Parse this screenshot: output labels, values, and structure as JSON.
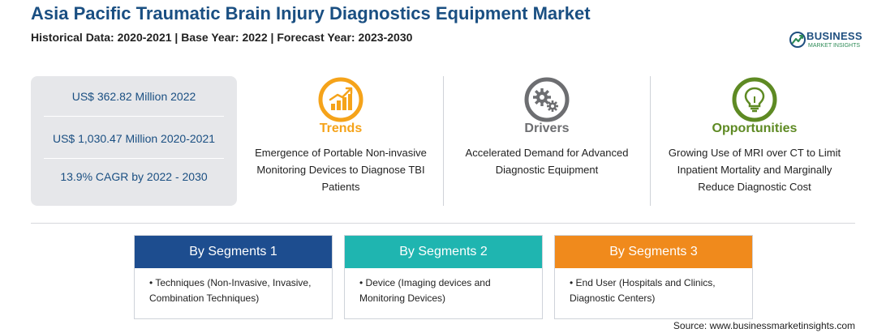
{
  "header": {
    "title": "Asia Pacific Traumatic Brain Injury Diagnostics Equipment Market",
    "subtitle": "Historical Data: 2020-2021 | Base Year: 2022 | Forecast Year: 2023-2030"
  },
  "logo": {
    "name": "BUSINESS",
    "tagline": "MARKET INSIGHTS",
    "colors": {
      "primary": "#1f4f7f",
      "accent": "#2e8b57"
    }
  },
  "stats": [
    "US$ 362.82 Million 2022",
    "US$ 1,030.47 Million 2020-2021",
    "13.9% CAGR by 2022 - 2030"
  ],
  "factors": [
    {
      "title": "Trends",
      "icon": "trending-chart-icon",
      "color": "#f5a31a",
      "text": "Emergence of Portable Non-invasive Monitoring Devices to Diagnose TBI Patients"
    },
    {
      "title": "Drivers",
      "icon": "gears-icon",
      "color": "#6d6e71",
      "text": "Accelerated Demand for Advanced Diagnostic Equipment"
    },
    {
      "title": "Opportunities",
      "icon": "lightbulb-icon",
      "color": "#5e8a23",
      "text": "Growing Use of MRI over CT to Limit Inpatient Mortality and Marginally Reduce Diagnostic Cost"
    }
  ],
  "segments": [
    {
      "title": "By Segments 1",
      "color": "#1d4d8f",
      "item": "• Techniques (Non-Invasive, Invasive, Combination Techniques)"
    },
    {
      "title": "By Segments 2",
      "color": "#1fb5b0",
      "item": "• Device (Imaging devices and Monitoring Devices)"
    },
    {
      "title": "By Segments 3",
      "color": "#f08a1c",
      "item": "• End User (Hospitals and Clinics, Diagnostic Centers)"
    }
  ],
  "source": "Source: www.businessmarketinsights.com"
}
